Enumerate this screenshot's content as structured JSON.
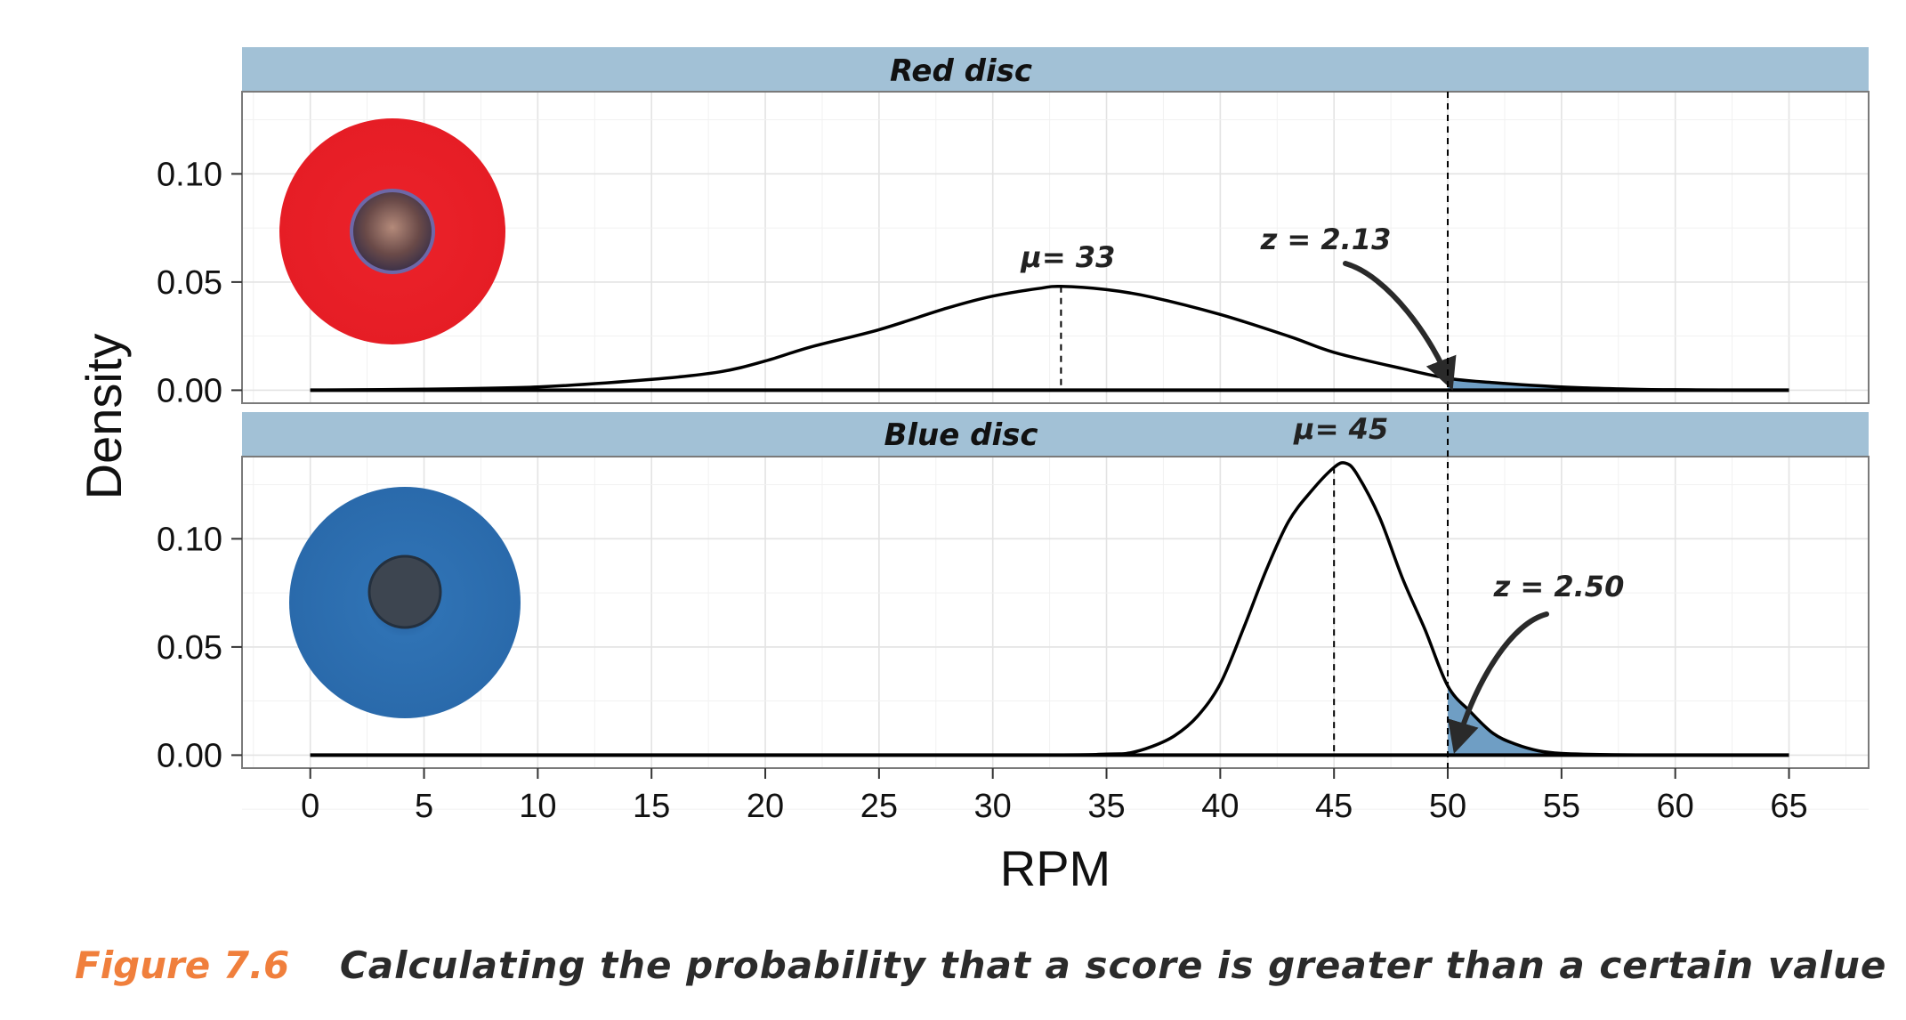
{
  "figure": {
    "label": "Figure 7.6",
    "caption": "Calculating the probability that a score is greater than a certain value"
  },
  "chart_data": {
    "type": "area",
    "xlabel": "RPM",
    "ylabel": "Density",
    "xlim": [
      -3,
      68.5
    ],
    "x_ticks": [
      0,
      5,
      10,
      15,
      20,
      25,
      30,
      35,
      40,
      45,
      50,
      55,
      60,
      65
    ],
    "y_ticks": [
      0.0,
      0.05,
      0.1
    ],
    "y_tick_labels": [
      "0.00",
      "0.05",
      "0.10"
    ],
    "ylim": [
      -0.006,
      0.138
    ],
    "threshold": 50,
    "grid": true,
    "colors": {
      "strip": "#a2c1d6",
      "shade": "#6f9ec4",
      "red_disc": "#e8202a",
      "blue_disc": "#2f6fb0"
    },
    "panels": [
      {
        "strip": "Red disc",
        "mu": 33,
        "mu_label": "μ= 33",
        "z_label": "z = 2.13",
        "disc_color": "red",
        "x": [
          0,
          5,
          10,
          15,
          18,
          20,
          22,
          25,
          28,
          30,
          32,
          33,
          35,
          37,
          40,
          43,
          45,
          48,
          50,
          52,
          55,
          58,
          60,
          62,
          65
        ],
        "y": [
          0.0,
          0.0005,
          0.0015,
          0.005,
          0.0085,
          0.0135,
          0.02,
          0.028,
          0.038,
          0.0435,
          0.047,
          0.048,
          0.0465,
          0.043,
          0.035,
          0.025,
          0.0175,
          0.01,
          0.0055,
          0.0035,
          0.0015,
          0.0005,
          0.0002,
          0.0001,
          0.0
        ]
      },
      {
        "strip": "Blue disc",
        "mu": 45,
        "mu_label": "μ= 45",
        "z_label": "z = 2.50",
        "disc_color": "blue",
        "x": [
          0,
          30,
          35,
          36,
          37,
          38,
          39,
          40,
          41,
          42,
          43,
          44,
          45,
          45.5,
          46,
          47,
          48,
          49,
          50,
          51,
          52,
          53,
          54,
          55,
          57,
          60,
          65
        ],
        "y": [
          0.0,
          0.0,
          0.0005,
          0.001,
          0.004,
          0.009,
          0.018,
          0.033,
          0.058,
          0.085,
          0.108,
          0.122,
          0.133,
          0.135,
          0.13,
          0.11,
          0.082,
          0.058,
          0.032,
          0.02,
          0.01,
          0.005,
          0.002,
          0.0008,
          0.0002,
          0.0,
          0.0
        ]
      }
    ]
  }
}
